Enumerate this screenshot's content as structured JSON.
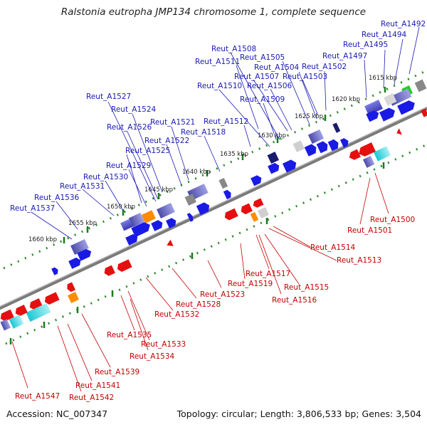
{
  "title": "Ralstonia eutropha JMP134 chromosome 1, complete sequence",
  "footer": {
    "accession": "Accession: NC_007347",
    "summary": "Topology: circular; Length: 3,806,533 bp; Genes: 3,504"
  },
  "colors": {
    "top_label": "#1a1ab3",
    "bottom_label": "#c20000",
    "forward_gene": "#1a1ae6",
    "reverse_gene": "#e60f0f",
    "tick": "#2a8a2a",
    "backbone": "#888888"
  },
  "kbp_markers": [
    "1615 kbp",
    "1620 kbp",
    "1625 kbp",
    "1630 kbp",
    "1635 kbp",
    "1640 kbp",
    "1645 kbp",
    "1650 kbp",
    "1655 kbp",
    "1660 kbp"
  ],
  "top_labels": [
    "Reut_A1492",
    "Reut_A1494",
    "Reut_A1495",
    "Reut_A1497",
    "Reut_A1502",
    "Reut_A1503",
    "Reut_A1504",
    "Reut_A1505",
    "Reut_A1506",
    "Reut_A1507",
    "Reut_A1508",
    "Reut_A1509",
    "Reut_A1510",
    "Reut_A1511",
    "Reut_A1512",
    "Reut_A1518",
    "Reut_A1521",
    "Reut_A1522",
    "Reut_A1524",
    "Reut_A1525",
    "Reut_A1526",
    "Reut_A1527",
    "Reut_A1529",
    "Reut_A1530",
    "Reut_A1531",
    "Reut_A1536",
    "Reut_A1537"
  ],
  "bottom_labels": [
    "Reut_A1500",
    "Reut_A1501",
    "Reut_A1513",
    "Reut_A1514",
    "Reut_A1515",
    "Reut_A1516",
    "Reut_A1517",
    "Reut_A1519",
    "Reut_A1523",
    "Reut_A1528",
    "Reut_A1532",
    "Reut_A1533",
    "Reut_A1534",
    "Reut_A1535",
    "Reut_A1539",
    "Reut_A1541",
    "Reut_A1542",
    "Reut_A1547"
  ]
}
